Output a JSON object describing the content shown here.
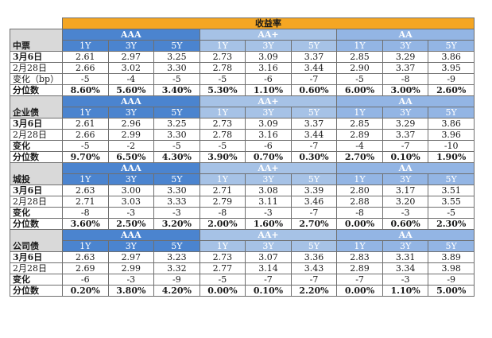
{
  "header": {
    "title": "收益率",
    "grades": [
      "AAA",
      "AA+",
      "AA"
    ],
    "tenors": [
      "1Y",
      "3Y",
      "5Y"
    ]
  },
  "sections": [
    {
      "name": "中票",
      "rows": [
        {
          "label": "3月6日",
          "values": [
            "2.61",
            "2.97",
            "3.25",
            "2.73",
            "3.09",
            "3.37",
            "2.85",
            "3.29",
            "3.86"
          ]
        },
        {
          "label": "2月28日",
          "values": [
            "2.66",
            "3.02",
            "3.30",
            "2.78",
            "3.16",
            "3.44",
            "2.90",
            "3.37",
            "3.95"
          ]
        },
        {
          "label": "变化（bp）",
          "values": [
            "-5",
            "-4",
            "-5",
            "-5",
            "-6",
            "-7",
            "-5",
            "-8",
            "-9"
          ]
        },
        {
          "label": "分位数",
          "values": [
            "8.60%",
            "5.60%",
            "3.40%",
            "5.30%",
            "1.10%",
            "0.60%",
            "6.00%",
            "3.00%",
            "2.60%"
          ]
        }
      ]
    },
    {
      "name": "企业债",
      "rows": [
        {
          "label": "3月6日",
          "values": [
            "2.61",
            "2.96",
            "3.25",
            "2.73",
            "3.09",
            "3.37",
            "2.85",
            "3.29",
            "3.86"
          ]
        },
        {
          "label": "2月28日",
          "values": [
            "2.66",
            "2.99",
            "3.30",
            "2.78",
            "3.16",
            "3.44",
            "2.89",
            "3.37",
            "3.96"
          ]
        },
        {
          "label": "变化",
          "values": [
            "-5",
            "-2",
            "-5",
            "-5",
            "-6",
            "-7",
            "-4",
            "-7",
            "-10"
          ]
        },
        {
          "label": "分位数",
          "values": [
            "9.70%",
            "6.50%",
            "4.30%",
            "3.90%",
            "0.70%",
            "0.30%",
            "2.70%",
            "0.10%",
            "1.90%"
          ]
        }
      ]
    },
    {
      "name": "城投",
      "rows": [
        {
          "label": "3月6日",
          "values": [
            "2.63",
            "3.00",
            "3.30",
            "2.71",
            "3.08",
            "3.39",
            "2.80",
            "3.17",
            "3.51"
          ]
        },
        {
          "label": "2月28日",
          "values": [
            "2.71",
            "3.03",
            "3.33",
            "2.79",
            "3.11",
            "3.46",
            "2.88",
            "3.20",
            "3.55"
          ]
        },
        {
          "label": "变化",
          "values": [
            "-8",
            "-3",
            "-3",
            "-8",
            "-3",
            "-7",
            "-8",
            "-3",
            "-5"
          ]
        },
        {
          "label": "分位数",
          "values": [
            "3.60%",
            "2.50%",
            "3.20%",
            "2.00%",
            "1.60%",
            "2.70%",
            "0.00%",
            "0.60%",
            "2.30%"
          ]
        }
      ]
    },
    {
      "name": "公司债",
      "rows": [
        {
          "label": "3月6日",
          "values": [
            "2.63",
            "2.97",
            "3.23",
            "2.73",
            "3.07",
            "3.36",
            "2.83",
            "3.31",
            "3.89"
          ]
        },
        {
          "label": "2月28日",
          "values": [
            "2.69",
            "2.99",
            "3.32",
            "2.77",
            "3.14",
            "3.43",
            "2.89",
            "3.34",
            "3.98"
          ]
        },
        {
          "label": "变化",
          "values": [
            "-6",
            "-3",
            "-9",
            "-5",
            "-7",
            "-7",
            "-7",
            "-3",
            "-9"
          ]
        },
        {
          "label": "分位数",
          "values": [
            "0.20%",
            "3.80%",
            "4.20%",
            "0.00%",
            "0.10%",
            "2.20%",
            "0.00%",
            "1.10%",
            "5.00%"
          ]
        }
      ]
    }
  ]
}
